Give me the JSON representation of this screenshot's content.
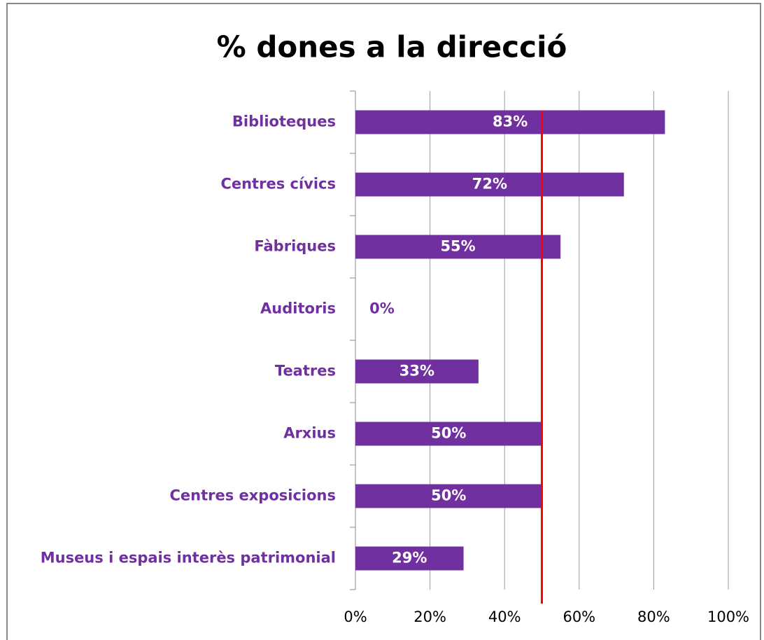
{
  "chart_data": {
    "type": "barh",
    "title": "% dones a la direcció",
    "categories": [
      "Biblioteques",
      "Centres cívics",
      "Fàbriques",
      "Auditoris",
      "Teatres",
      "Arxius",
      "Centres exposicions",
      "Museus i espais interès patrimonial"
    ],
    "values": [
      83,
      72,
      55,
      0,
      33,
      50,
      50,
      29
    ],
    "value_labels": [
      "83%",
      "72%",
      "55%",
      "0%",
      "33%",
      "50%",
      "50%",
      "29%"
    ],
    "color": "#7030a0",
    "xlim": [
      0,
      100
    ],
    "xticks": [
      {
        "value": 0,
        "label": "0%"
      },
      {
        "value": 20,
        "label": "20%"
      },
      {
        "value": 40,
        "label": "40%"
      },
      {
        "value": 60,
        "label": "60%"
      },
      {
        "value": 80,
        "label": "80%"
      },
      {
        "value": 100,
        "label": "100%"
      }
    ],
    "grid": true,
    "reference_line": {
      "value": 50,
      "color": "#ff0000"
    }
  }
}
